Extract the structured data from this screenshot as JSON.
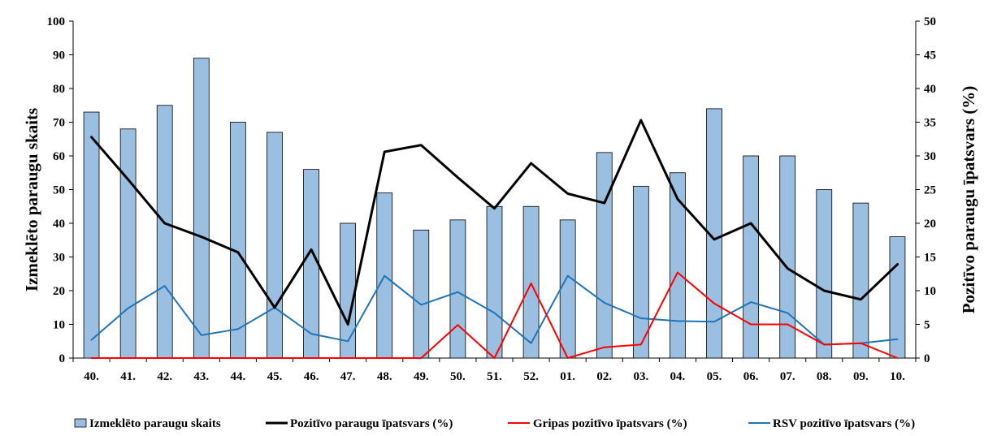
{
  "chart_data": {
    "type": "bar",
    "categories": [
      "40.",
      "41.",
      "42.",
      "43.",
      "44.",
      "45.",
      "46.",
      "47.",
      "48.",
      "49.",
      "50.",
      "51.",
      "52.",
      "01.",
      "02.",
      "03.",
      "04.",
      "05.",
      "06.",
      "07.",
      "08.",
      "09.",
      "10."
    ],
    "ylabel": "Izmeklēto paraugu skaits",
    "y2label": "Pozitīvo paraugu īpatsvars (%)",
    "ylim": [
      0,
      100
    ],
    "y2lim": [
      0,
      50
    ],
    "yticks": [
      "0",
      "10",
      "20",
      "30",
      "40",
      "50",
      "60",
      "70",
      "80",
      "90",
      "100"
    ],
    "y2ticks": [
      "0",
      "5",
      "10",
      "15",
      "20",
      "25",
      "30",
      "35",
      "40",
      "45",
      "50"
    ],
    "legend_position": "bottom",
    "series": [
      {
        "name": "Izmeklēto paraugu skaits",
        "type": "bar",
        "axis": "left",
        "color": "#9bbfe0",
        "values": [
          73,
          68,
          75,
          89,
          70,
          67,
          56,
          40,
          49,
          38,
          41,
          45,
          45,
          41,
          61,
          51,
          55,
          74,
          60,
          60,
          50,
          46,
          36
        ]
      },
      {
        "name": "Pozitīvo paraugu īpatsvars (%)",
        "type": "line",
        "axis": "right",
        "color": "#000000",
        "values": [
          32.8,
          26.5,
          20.0,
          18.0,
          15.7,
          7.5,
          16.1,
          5.0,
          30.6,
          31.6,
          26.8,
          22.2,
          28.9,
          24.4,
          23.0,
          35.3,
          23.6,
          17.6,
          20.0,
          13.3,
          10.0,
          8.7,
          13.9
        ]
      },
      {
        "name": "Gripas pozitīvo  īpatsvars (%)",
        "type": "line",
        "axis": "right",
        "color": "#ff0000",
        "values": [
          0,
          0,
          0,
          0,
          0,
          0,
          0,
          0,
          0,
          0,
          4.9,
          0,
          11.1,
          0,
          1.6,
          2.0,
          12.7,
          8.1,
          5.0,
          5.0,
          2.0,
          2.2,
          0
        ]
      },
      {
        "name": "RSV pozitīvo īpatsvars (%)",
        "type": "line",
        "axis": "right",
        "color": "#1f73b8",
        "values": [
          2.7,
          7.4,
          10.7,
          3.4,
          4.3,
          7.5,
          3.6,
          2.5,
          12.2,
          7.9,
          9.8,
          6.7,
          2.2,
          12.2,
          8.2,
          5.9,
          5.5,
          5.4,
          8.3,
          6.7,
          2.0,
          2.2,
          2.8
        ]
      }
    ]
  }
}
